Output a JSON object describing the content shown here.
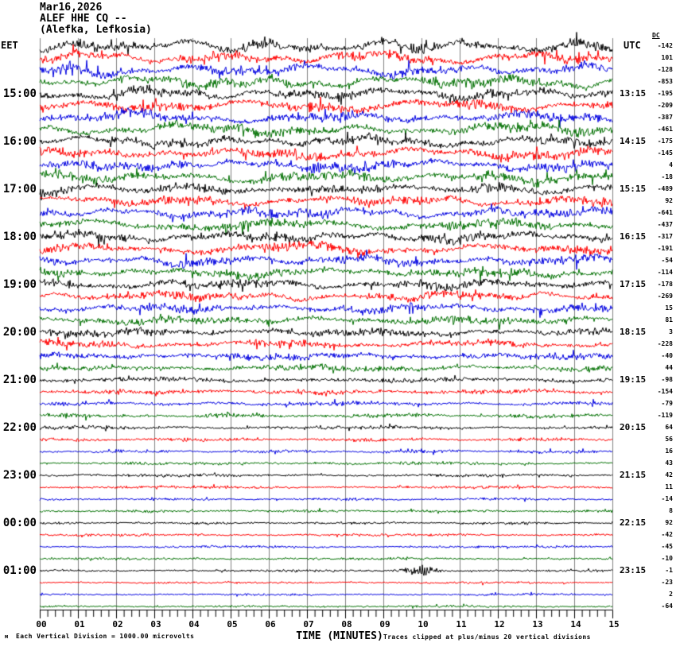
{
  "header": {
    "date": "Mar16,2026",
    "station": "ALEF HHE CQ --",
    "location": "(Alefka, Lefkosia)"
  },
  "axis": {
    "left_tz": "EET",
    "right_tz": "UTC",
    "dc_header": "DC",
    "bottom_label": "TIME (MINUTES)",
    "minute_labels": [
      "00",
      "01",
      "02",
      "03",
      "04",
      "05",
      "06",
      "07",
      "08",
      "09",
      "10",
      "11",
      "12",
      "13",
      "14",
      "15"
    ]
  },
  "footer": {
    "corner_mark": "м",
    "scale_note": "Each Vertical Division = 1000.00 microvolts",
    "clip_note": "Traces clipped at plus/minus 20 vertical divisions"
  },
  "colors": {
    "black": "#000000",
    "red": "#ff0000",
    "blue": "#0000e0",
    "green": "#007000",
    "grid": "#808080",
    "axis": "#000000"
  },
  "chart_data": {
    "type": "line",
    "subtype": "helicorder-seismogram",
    "title": "ALEF HHE CQ -- (Alefka, Lefkosia) Mar16,2026",
    "xlabel": "TIME (MINUTES)",
    "x_range_minutes": [
      0,
      15
    ],
    "minutes_per_row": 15,
    "minor_tick_minutes": 0.2,
    "grid": true,
    "scale_note": "Each Vertical Division = 1000.00 microvolts",
    "clip_note": "Traces clipped at plus/minus 20 vertical divisions",
    "event": {
      "row_index": 45,
      "minute": 10,
      "description": "small high-frequency burst on 01:00 EET / 23:15 UTC black trace"
    },
    "rows": [
      {
        "eet": "",
        "utc": "",
        "dc": -142,
        "color": "black",
        "amp": 3.2,
        "slow": 4.6
      },
      {
        "eet": "",
        "utc": "",
        "dc": 101,
        "color": "red",
        "amp": 3.2,
        "slow": 4.6
      },
      {
        "eet": "",
        "utc": "",
        "dc": -128,
        "color": "blue",
        "amp": 3.2,
        "slow": 4.6
      },
      {
        "eet": "",
        "utc": "",
        "dc": -853,
        "color": "green",
        "amp": 3.2,
        "slow": 4.6
      },
      {
        "eet": "15:00",
        "utc": "13:15",
        "dc": -195,
        "color": "black",
        "amp": 3.2,
        "slow": 4.4
      },
      {
        "eet": "",
        "utc": "",
        "dc": -209,
        "color": "red",
        "amp": 3.2,
        "slow": 4.4
      },
      {
        "eet": "",
        "utc": "",
        "dc": -387,
        "color": "blue",
        "amp": 3.2,
        "slow": 4.4
      },
      {
        "eet": "",
        "utc": "",
        "dc": -461,
        "color": "green",
        "amp": 3.2,
        "slow": 4.4
      },
      {
        "eet": "16:00",
        "utc": "14:15",
        "dc": -175,
        "color": "black",
        "amp": 3.1,
        "slow": 4.0
      },
      {
        "eet": "",
        "utc": "",
        "dc": -145,
        "color": "red",
        "amp": 3.1,
        "slow": 4.0
      },
      {
        "eet": "",
        "utc": "",
        "dc": 4,
        "color": "blue",
        "amp": 3.1,
        "slow": 4.0
      },
      {
        "eet": "",
        "utc": "",
        "dc": -18,
        "color": "green",
        "amp": 3.1,
        "slow": 4.0
      },
      {
        "eet": "17:00",
        "utc": "15:15",
        "dc": -489,
        "color": "black",
        "amp": 3.0,
        "slow": 3.8
      },
      {
        "eet": "",
        "utc": "",
        "dc": 92,
        "color": "red",
        "amp": 3.0,
        "slow": 3.8
      },
      {
        "eet": "",
        "utc": "",
        "dc": -641,
        "color": "blue",
        "amp": 3.0,
        "slow": 3.8
      },
      {
        "eet": "",
        "utc": "",
        "dc": -437,
        "color": "green",
        "amp": 3.0,
        "slow": 3.8
      },
      {
        "eet": "18:00",
        "utc": "16:15",
        "dc": -317,
        "color": "black",
        "amp": 3.0,
        "slow": 3.5
      },
      {
        "eet": "",
        "utc": "",
        "dc": -191,
        "color": "red",
        "amp": 3.0,
        "slow": 3.5
      },
      {
        "eet": "",
        "utc": "",
        "dc": -54,
        "color": "blue",
        "amp": 3.0,
        "slow": 3.5
      },
      {
        "eet": "",
        "utc": "",
        "dc": -114,
        "color": "green",
        "amp": 2.9,
        "slow": 3.3
      },
      {
        "eet": "19:00",
        "utc": "17:15",
        "dc": -178,
        "color": "black",
        "amp": 2.8,
        "slow": 3.0
      },
      {
        "eet": "",
        "utc": "",
        "dc": -269,
        "color": "red",
        "amp": 2.8,
        "slow": 2.8
      },
      {
        "eet": "",
        "utc": "",
        "dc": 15,
        "color": "blue",
        "amp": 2.6,
        "slow": 2.6
      },
      {
        "eet": "",
        "utc": "",
        "dc": 81,
        "color": "green",
        "amp": 2.6,
        "slow": 2.4
      },
      {
        "eet": "20:00",
        "utc": "18:15",
        "dc": 3,
        "color": "black",
        "amp": 2.4,
        "slow": 2.2
      },
      {
        "eet": "",
        "utc": "",
        "dc": -228,
        "color": "red",
        "amp": 2.3,
        "slow": 1.9
      },
      {
        "eet": "",
        "utc": "",
        "dc": -40,
        "color": "blue",
        "amp": 2.2,
        "slow": 1.7
      },
      {
        "eet": "",
        "utc": "",
        "dc": 44,
        "color": "green",
        "amp": 2.0,
        "slow": 1.5
      },
      {
        "eet": "21:00",
        "utc": "19:15",
        "dc": -98,
        "color": "black",
        "amp": 1.7,
        "slow": 1.1
      },
      {
        "eet": "",
        "utc": "",
        "dc": -154,
        "color": "red",
        "amp": 1.6,
        "slow": 1.0
      },
      {
        "eet": "",
        "utc": "",
        "dc": -79,
        "color": "blue",
        "amp": 1.5,
        "slow": 0.9
      },
      {
        "eet": "",
        "utc": "",
        "dc": -119,
        "color": "green",
        "amp": 1.45,
        "slow": 0.85
      },
      {
        "eet": "22:00",
        "utc": "20:15",
        "dc": 64,
        "color": "black",
        "amp": 1.3,
        "slow": 0.7
      },
      {
        "eet": "",
        "utc": "",
        "dc": 56,
        "color": "red",
        "amp": 1.25,
        "slow": 0.6
      },
      {
        "eet": "",
        "utc": "",
        "dc": 16,
        "color": "blue",
        "amp": 1.15,
        "slow": 0.55
      },
      {
        "eet": "",
        "utc": "",
        "dc": 43,
        "color": "green",
        "amp": 1.1,
        "slow": 0.5
      },
      {
        "eet": "23:00",
        "utc": "21:15",
        "dc": 42,
        "color": "black",
        "amp": 1.05,
        "slow": 0.45
      },
      {
        "eet": "",
        "utc": "",
        "dc": 11,
        "color": "red",
        "amp": 1.0,
        "slow": 0.4
      },
      {
        "eet": "",
        "utc": "",
        "dc": -14,
        "color": "blue",
        "amp": 0.95,
        "slow": 0.4
      },
      {
        "eet": "",
        "utc": "",
        "dc": 8,
        "color": "green",
        "amp": 0.95,
        "slow": 0.4
      },
      {
        "eet": "00:00",
        "utc": "22:15",
        "dc": 92,
        "color": "black",
        "amp": 0.9,
        "slow": 0.35
      },
      {
        "eet": "",
        "utc": "",
        "dc": -42,
        "color": "red",
        "amp": 0.9,
        "slow": 0.35
      },
      {
        "eet": "",
        "utc": "",
        "dc": -45,
        "color": "blue",
        "amp": 0.85,
        "slow": 0.3
      },
      {
        "eet": "",
        "utc": "",
        "dc": -10,
        "color": "green",
        "amp": 0.85,
        "slow": 0.3
      },
      {
        "eet": "01:00",
        "utc": "23:15",
        "dc": -1,
        "color": "black",
        "amp": 0.85,
        "slow": 0.3,
        "event": true
      },
      {
        "eet": "",
        "utc": "",
        "dc": -23,
        "color": "red",
        "amp": 0.8,
        "slow": 0.3
      },
      {
        "eet": "",
        "utc": "",
        "dc": 2,
        "color": "blue",
        "amp": 0.8,
        "slow": 0.28
      },
      {
        "eet": "",
        "utc": "",
        "dc": -64,
        "color": "green",
        "amp": 0.8,
        "slow": 0.28
      }
    ]
  }
}
